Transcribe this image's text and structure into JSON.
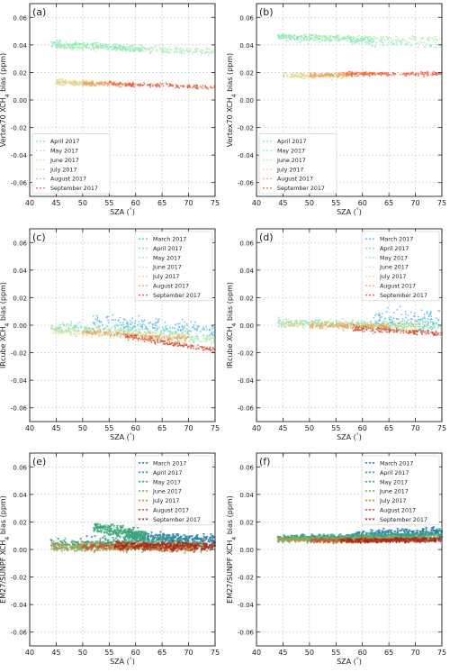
{
  "figure": {
    "x_axis_label": "SZA (°)",
    "y_tick_values": [
      -0.06,
      -0.04,
      -0.02,
      0.0,
      0.02,
      0.04,
      0.06
    ],
    "x_tick_values": [
      40,
      45,
      50,
      55,
      60,
      65,
      70,
      75
    ]
  },
  "chart_data": [
    {
      "type": "scatter",
      "panel_label": "(a)",
      "xlabel": "SZA (°)",
      "ylabel": "Vertex70 XCH4 bias (ppm)",
      "xlim": [
        40,
        75
      ],
      "ylim": [
        -0.07,
        0.07
      ],
      "grid": true,
      "legend_position": "bottom-left",
      "series": [
        {
          "name": "April 2017",
          "color": "#78e6b4",
          "x_range": [
            44,
            61
          ],
          "y_start": 0.041,
          "y_end": 0.037,
          "spread": 0.0025
        },
        {
          "name": "May 2017",
          "color": "#96ecc8",
          "x_range": [
            45,
            75
          ],
          "y_start": 0.04,
          "y_end": 0.034,
          "spread": 0.0025
        },
        {
          "name": "June 2017",
          "color": "#b8eea4",
          "x_range": [
            45,
            75
          ],
          "y_start": 0.039,
          "y_end": 0.036,
          "spread": 0.0025
        },
        {
          "name": "July 2017",
          "color": "#e5d48c",
          "x_range": [
            45,
            52
          ],
          "y_start": 0.013,
          "y_end": 0.012,
          "spread": 0.002
        },
        {
          "name": "August 2017",
          "color": "#f0a060",
          "x_range": [
            50,
            60
          ],
          "y_start": 0.012,
          "y_end": 0.011,
          "spread": 0.0015
        },
        {
          "name": "September 2017",
          "color": "#e86040",
          "x_range": [
            55,
            75
          ],
          "y_start": 0.012,
          "y_end": 0.009,
          "spread": 0.0015
        }
      ]
    },
    {
      "type": "scatter",
      "panel_label": "(b)",
      "xlabel": "SZA (°)",
      "ylabel": "Vertex70 XCH4 bias (ppm)",
      "xlim": [
        40,
        75
      ],
      "ylim": [
        -0.07,
        0.07
      ],
      "grid": true,
      "legend_position": "bottom-left",
      "series": [
        {
          "name": "April 2017",
          "color": "#78e6b4",
          "x_range": [
            44,
            62
          ],
          "y_start": 0.046,
          "y_end": 0.044,
          "spread": 0.002
        },
        {
          "name": "May 2017",
          "color": "#96ecc8",
          "x_range": [
            45,
            75
          ],
          "y_start": 0.045,
          "y_end": 0.04,
          "spread": 0.003
        },
        {
          "name": "June 2017",
          "color": "#b8eea4",
          "x_range": [
            45,
            75
          ],
          "y_start": 0.046,
          "y_end": 0.044,
          "spread": 0.002
        },
        {
          "name": "July 2017",
          "color": "#e5d48c",
          "x_range": [
            45,
            57
          ],
          "y_start": 0.018,
          "y_end": 0.017,
          "spread": 0.002
        },
        {
          "name": "August 2017",
          "color": "#f0a060",
          "x_range": [
            50,
            62
          ],
          "y_start": 0.018,
          "y_end": 0.019,
          "spread": 0.0015
        },
        {
          "name": "September 2017",
          "color": "#e86040",
          "x_range": [
            57,
            75
          ],
          "y_start": 0.019,
          "y_end": 0.019,
          "spread": 0.0015
        }
      ]
    },
    {
      "type": "scatter",
      "panel_label": "(c)",
      "xlabel": "SZA (°)",
      "ylabel": "IRcube XCH4 bias (ppm)",
      "xlim": [
        40,
        75
      ],
      "ylim": [
        -0.07,
        0.07
      ],
      "grid": true,
      "legend_position": "top-right",
      "series": [
        {
          "name": "March 2017",
          "color": "#4ab8e8",
          "x_range": [
            52,
            75
          ],
          "y_start": 0.004,
          "y_end": -0.004,
          "spread": 0.005
        },
        {
          "name": "April 2017",
          "color": "#6edcc4",
          "x_range": [
            44,
            70
          ],
          "y_start": -0.001,
          "y_end": -0.004,
          "spread": 0.003
        },
        {
          "name": "May 2017",
          "color": "#90e8b0",
          "x_range": [
            44,
            75
          ],
          "y_start": -0.002,
          "y_end": -0.01,
          "spread": 0.003
        },
        {
          "name": "June 2017",
          "color": "#b8eea4",
          "x_range": [
            44,
            75
          ],
          "y_start": -0.003,
          "y_end": -0.011,
          "spread": 0.003
        },
        {
          "name": "July 2017",
          "color": "#e5d48c",
          "x_range": [
            44,
            70
          ],
          "y_start": -0.004,
          "y_end": -0.008,
          "spread": 0.003
        },
        {
          "name": "August 2017",
          "color": "#f0a060",
          "x_range": [
            50,
            70
          ],
          "y_start": -0.005,
          "y_end": -0.01,
          "spread": 0.002
        },
        {
          "name": "September 2017",
          "color": "#e04a2e",
          "x_range": [
            58,
            75
          ],
          "y_start": -0.008,
          "y_end": -0.018,
          "spread": 0.002
        }
      ]
    },
    {
      "type": "scatter",
      "panel_label": "(d)",
      "xlabel": "SZA (°)",
      "ylabel": "IRcube XCH4 bias (ppm)",
      "xlim": [
        40,
        75
      ],
      "ylim": [
        -0.07,
        0.07
      ],
      "grid": true,
      "legend_position": "top-right",
      "series": [
        {
          "name": "March 2017",
          "color": "#4ab8e8",
          "x_range": [
            62,
            75
          ],
          "y_start": 0.002,
          "y_end": 0.004,
          "spread": 0.008
        },
        {
          "name": "April 2017",
          "color": "#6edcc4",
          "x_range": [
            44,
            70
          ],
          "y_start": 0.002,
          "y_end": 0.0,
          "spread": 0.003
        },
        {
          "name": "May 2017",
          "color": "#90e8b0",
          "x_range": [
            44,
            75
          ],
          "y_start": 0.001,
          "y_end": -0.002,
          "spread": 0.003
        },
        {
          "name": "June 2017",
          "color": "#b8eea4",
          "x_range": [
            44,
            75
          ],
          "y_start": 0.001,
          "y_end": 0.0,
          "spread": 0.003
        },
        {
          "name": "July 2017",
          "color": "#e5d48c",
          "x_range": [
            44,
            70
          ],
          "y_start": 0.001,
          "y_end": -0.001,
          "spread": 0.003
        },
        {
          "name": "August 2017",
          "color": "#f0a060",
          "x_range": [
            50,
            65
          ],
          "y_start": 0.0,
          "y_end": -0.001,
          "spread": 0.002
        },
        {
          "name": "September 2017",
          "color": "#e04a2e",
          "x_range": [
            58,
            75
          ],
          "y_start": -0.002,
          "y_end": -0.006,
          "spread": 0.002
        }
      ]
    },
    {
      "type": "scatter",
      "panel_label": "(e)",
      "xlabel": "SZA (°)",
      "ylabel": "EM27/SUNPF XCH4 bias (ppm)",
      "xlim": [
        40,
        75
      ],
      "ylim": [
        -0.07,
        0.07
      ],
      "grid": true,
      "legend_position": "top-right",
      "series": [
        {
          "name": "March 2017",
          "color": "#2a7fa8",
          "x_range": [
            58,
            75
          ],
          "y_start": 0.01,
          "y_end": 0.006,
          "spread": 0.004
        },
        {
          "name": "April 2017",
          "color": "#2a9c88",
          "x_range": [
            44,
            70
          ],
          "y_start": 0.004,
          "y_end": 0.006,
          "spread": 0.004
        },
        {
          "name": "May 2017",
          "color": "#3aa878",
          "x_range": [
            52,
            62
          ],
          "y_start": 0.016,
          "y_end": 0.01,
          "spread": 0.004
        },
        {
          "name": "June 2017",
          "color": "#7cb86a",
          "x_range": [
            44,
            75
          ],
          "y_start": 0.003,
          "y_end": 0.002,
          "spread": 0.004
        },
        {
          "name": "July 2017",
          "color": "#a89850",
          "x_range": [
            44,
            72
          ],
          "y_start": 0.002,
          "y_end": 0.001,
          "spread": 0.003
        },
        {
          "name": "August 2017",
          "color": "#c05a30",
          "x_range": [
            50,
            72
          ],
          "y_start": 0.002,
          "y_end": 0.002,
          "spread": 0.003
        },
        {
          "name": "September 2017",
          "color": "#a82a1a",
          "x_range": [
            56,
            75
          ],
          "y_start": 0.003,
          "y_end": 0.002,
          "spread": 0.003
        }
      ]
    },
    {
      "type": "scatter",
      "panel_label": "(f)",
      "xlabel": "SZA (°)",
      "ylabel": "EM27/SUNPF XCH4 bias (ppm)",
      "xlim": [
        40,
        75
      ],
      "ylim": [
        -0.07,
        0.07
      ],
      "grid": true,
      "legend_position": "top-right",
      "series": [
        {
          "name": "March 2017",
          "color": "#2a7fa8",
          "x_range": [
            58,
            75
          ],
          "y_start": 0.01,
          "y_end": 0.013,
          "spread": 0.003
        },
        {
          "name": "April 2017",
          "color": "#2a9c88",
          "x_range": [
            44,
            72
          ],
          "y_start": 0.008,
          "y_end": 0.01,
          "spread": 0.002
        },
        {
          "name": "May 2017",
          "color": "#3aa878",
          "x_range": [
            44,
            75
          ],
          "y_start": 0.008,
          "y_end": 0.01,
          "spread": 0.002
        },
        {
          "name": "June 2017",
          "color": "#7cb86a",
          "x_range": [
            44,
            75
          ],
          "y_start": 0.007,
          "y_end": 0.008,
          "spread": 0.002
        },
        {
          "name": "July 2017",
          "color": "#a89850",
          "x_range": [
            44,
            72
          ],
          "y_start": 0.007,
          "y_end": 0.007,
          "spread": 0.002
        },
        {
          "name": "August 2017",
          "color": "#c05a30",
          "x_range": [
            50,
            72
          ],
          "y_start": 0.006,
          "y_end": 0.007,
          "spread": 0.0015
        },
        {
          "name": "September 2017",
          "color": "#a82a1a",
          "x_range": [
            56,
            75
          ],
          "y_start": 0.006,
          "y_end": 0.007,
          "spread": 0.0015
        }
      ]
    }
  ]
}
